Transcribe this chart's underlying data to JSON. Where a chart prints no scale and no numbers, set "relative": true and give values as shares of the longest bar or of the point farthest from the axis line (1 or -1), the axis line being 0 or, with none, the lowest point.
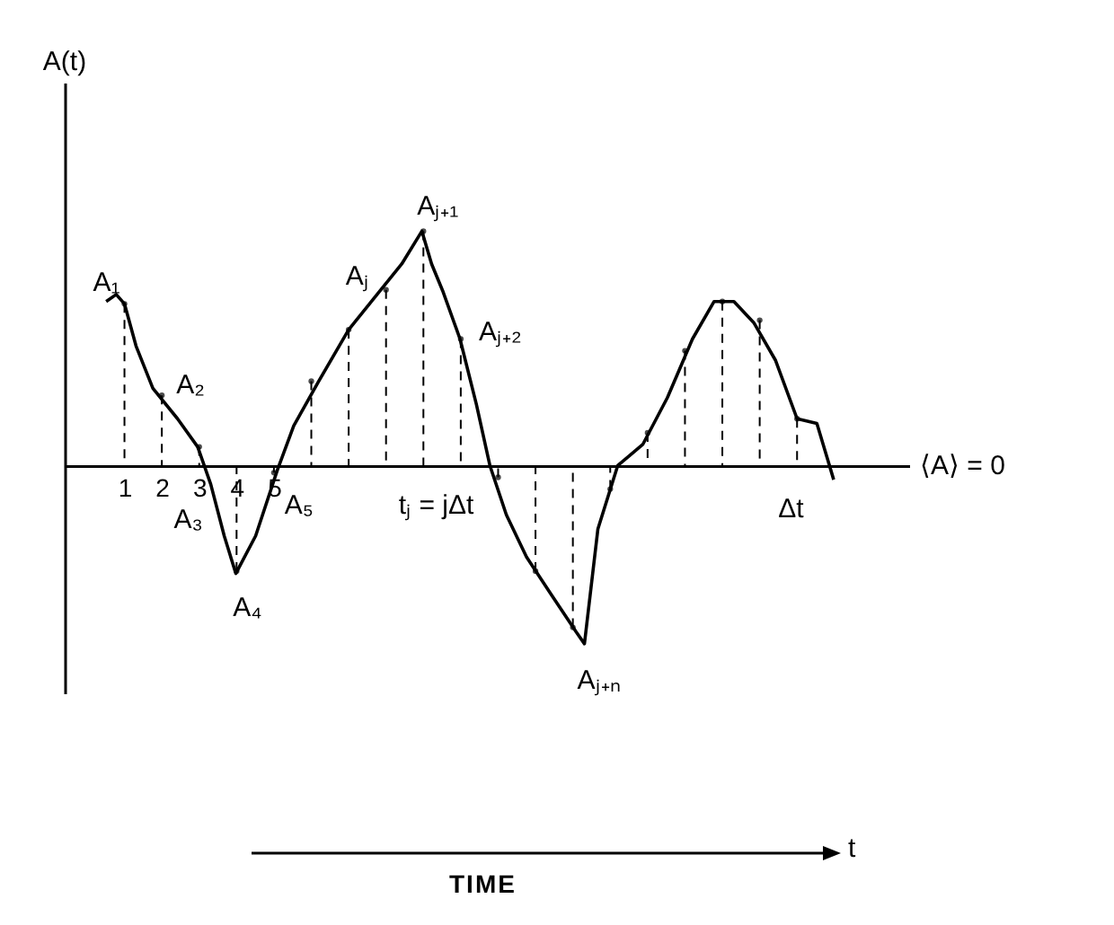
{
  "chart_data": {
    "type": "line",
    "relative": true,
    "tick_labels": "x",
    "xlim": [
      -0.6,
      22
    ],
    "xticks": [
      1,
      2,
      3,
      4,
      5
    ],
    "series": [
      {
        "color": "#000000",
        "line_style": "solid",
        "x": [
          0.51,
          0.78,
          1,
          1.31,
          1.76,
          2.42,
          2.96,
          3.31,
          3.67,
          3.98,
          4.51,
          5.09,
          5.53,
          6.2,
          7,
          7.76,
          8.42,
          8.96,
          9.22,
          9.53,
          9.98,
          10.42,
          10.78,
          11.22,
          11.76,
          12.42,
          13.09,
          13.31,
          13.67,
          14.2,
          14.87,
          15.53,
          16.2,
          16.78,
          17.31,
          17.84,
          18.42,
          19,
          19.53,
          19.98
        ],
        "values": [
          0.7,
          0.73,
          0.69,
          0.51,
          0.33,
          0.2,
          0.08,
          -0.08,
          -0.3,
          -0.46,
          -0.3,
          -0.02,
          0.17,
          0.36,
          0.58,
          0.73,
          0.86,
          1,
          0.86,
          0.74,
          0.54,
          0.26,
          0,
          -0.21,
          -0.39,
          -0.55,
          -0.71,
          -0.76,
          -0.27,
          0,
          0.09,
          0.29,
          0.54,
          0.7,
          0.7,
          0.61,
          0.45,
          0.2,
          0.18,
          -0.06
        ]
      },
      {
        "type": "lollipop",
        "color": "#000000",
        "line_style": "dashed",
        "x": [
          1,
          2,
          3,
          4,
          5,
          6,
          7,
          8,
          9,
          10,
          11,
          12,
          13,
          14,
          15,
          16,
          17,
          18,
          19
        ],
        "values": [
          0.69,
          0.3,
          0.08,
          -0.45,
          -0.03,
          0.36,
          0.58,
          0.75,
          1,
          0.54,
          -0.05,
          -0.45,
          -0.69,
          -0.1,
          0.14,
          0.49,
          0.7,
          0.62,
          0.2
        ]
      }
    ],
    "annotations": [
      "A(t)",
      {
        "text": "A₁",
        "x": 1,
        "y": 0.69
      },
      {
        "text": "A₂",
        "x": 2,
        "y": 0.3
      },
      {
        "text": "A₃",
        "x": 3,
        "y": 0.08
      },
      {
        "text": "A₄",
        "x": 4,
        "y": -0.45
      },
      {
        "text": "A₅",
        "x": 5,
        "y": -0.03
      },
      {
        "text": "Aⱼ",
        "x": 8,
        "y": 0.75
      },
      {
        "text": "Aⱼ₊₁",
        "x": 9,
        "y": 1
      },
      {
        "text": "Aⱼ₊₂",
        "x": 10,
        "y": 0.54
      },
      {
        "text": "Aⱼ₊ₙ",
        "x": 13.31,
        "y": -0.76
      },
      "tⱼ = jΔt",
      "Δt",
      "⟨A⟩ = 0",
      "TIME",
      "t"
    ]
  }
}
